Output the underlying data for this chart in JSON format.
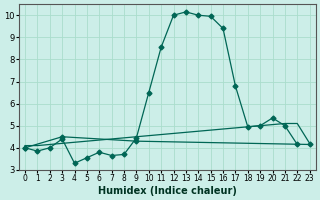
{
  "xlabel": "Humidex (Indice chaleur)",
  "ylabel": "",
  "bg_color": "#cceee8",
  "grid_color": "#aaddcc",
  "line_color": "#006655",
  "x_values": [
    0,
    1,
    2,
    3,
    4,
    5,
    6,
    7,
    8,
    9,
    10,
    11,
    12,
    13,
    14,
    15,
    16,
    17,
    18,
    19,
    20,
    21,
    22,
    23
  ],
  "line1": [
    4.0,
    3.85,
    4.0,
    4.4,
    3.3,
    3.55,
    3.8,
    3.65,
    3.7,
    4.45,
    6.5,
    8.55,
    10.0,
    10.15,
    10.0,
    9.95,
    9.4,
    6.8,
    4.95,
    5.0,
    5.35,
    5.0,
    4.15,
    null
  ],
  "line2": [
    4.0,
    null,
    null,
    4.5,
    null,
    null,
    null,
    null,
    null,
    4.3,
    null,
    null,
    null,
    null,
    null,
    null,
    null,
    null,
    null,
    null,
    null,
    null,
    null,
    4.15
  ],
  "line3": [
    4.1,
    4.1,
    4.15,
    4.2,
    4.25,
    4.3,
    4.35,
    4.4,
    4.45,
    4.5,
    4.55,
    4.6,
    4.65,
    4.7,
    4.75,
    4.8,
    4.85,
    4.9,
    4.95,
    5.0,
    5.05,
    5.1,
    5.1,
    4.2
  ],
  "ylim": [
    3.0,
    10.5
  ],
  "yticks": [
    3,
    4,
    5,
    6,
    7,
    8,
    9,
    10
  ],
  "xlim": [
    -0.5,
    23.5
  ]
}
